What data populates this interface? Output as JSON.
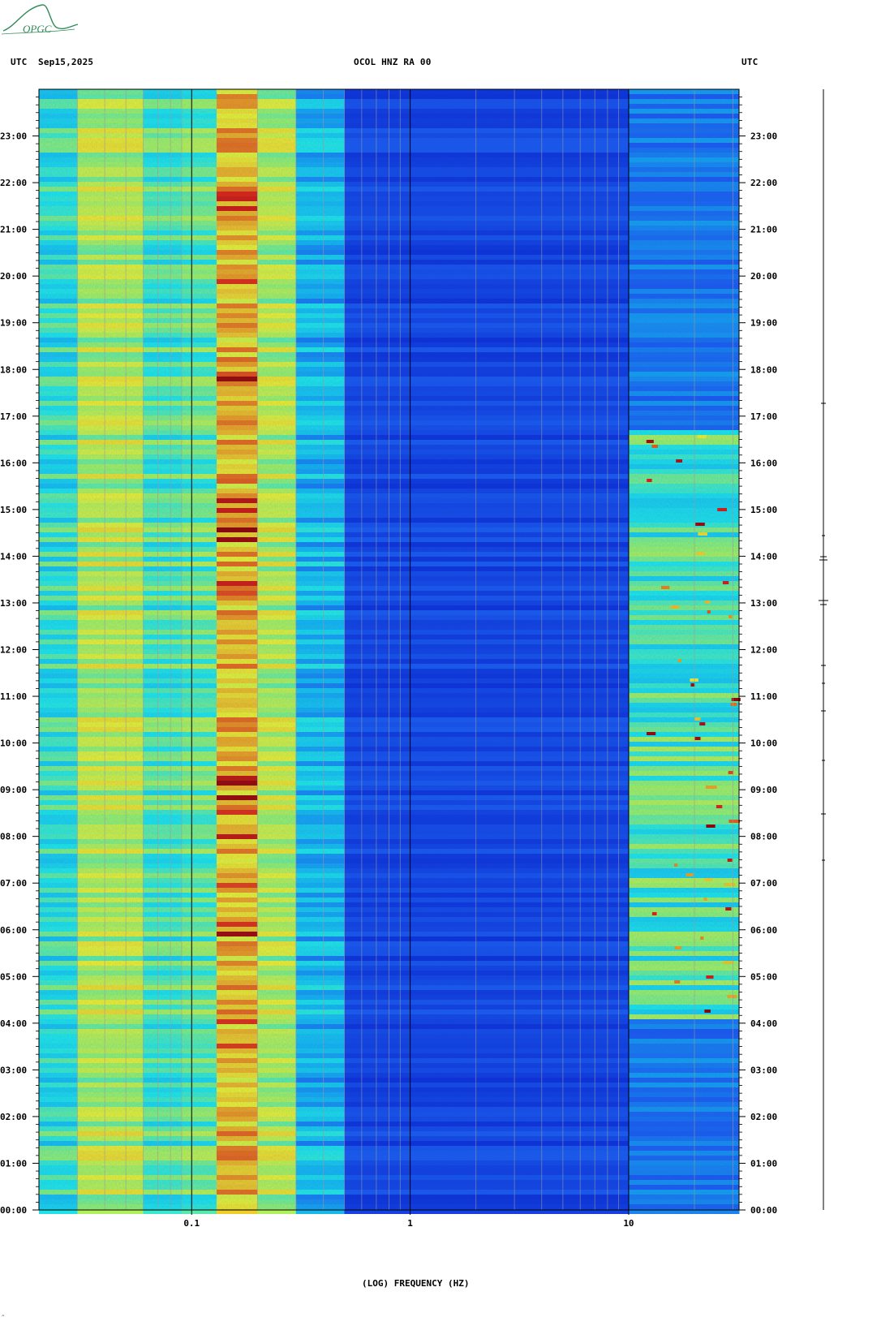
{
  "header": {
    "tz_left": "UTC",
    "date": "Sep15,2025",
    "station": "OCOL HNZ RA 00",
    "tz_right": "UTC"
  },
  "logo": {
    "text": "OPGC",
    "color": "#2e8b57"
  },
  "footnote": "^",
  "chart_data": {
    "type": "heatmap",
    "title": "OCOL HNZ RA 00",
    "xlabel": "(LOG) FREQUENCY (HZ)",
    "ylabel": "UTC",
    "x_scale": "log",
    "xlim": [
      0.02,
      32
    ],
    "x_ticks": [
      {
        "value": 0.1,
        "label": "0.1"
      },
      {
        "value": 1,
        "label": "1"
      },
      {
        "value": 10,
        "label": "10"
      }
    ],
    "y_unit": "hours",
    "ylim": [
      0,
      24
    ],
    "y_ticks": [
      {
        "value": 0,
        "label": "00:00"
      },
      {
        "value": 1,
        "label": "01:00"
      },
      {
        "value": 2,
        "label": "02:00"
      },
      {
        "value": 3,
        "label": "03:00"
      },
      {
        "value": 4,
        "label": "04:00"
      },
      {
        "value": 5,
        "label": "05:00"
      },
      {
        "value": 6,
        "label": "06:00"
      },
      {
        "value": 7,
        "label": "07:00"
      },
      {
        "value": 8,
        "label": "08:00"
      },
      {
        "value": 9,
        "label": "09:00"
      },
      {
        "value": 10,
        "label": "10:00"
      },
      {
        "value": 11,
        "label": "11:00"
      },
      {
        "value": 12,
        "label": "12:00"
      },
      {
        "value": 13,
        "label": "13:00"
      },
      {
        "value": 14,
        "label": "14:00"
      },
      {
        "value": 15,
        "label": "15:00"
      },
      {
        "value": 16,
        "label": "16:00"
      },
      {
        "value": 17,
        "label": "17:00"
      },
      {
        "value": 18,
        "label": "18:00"
      },
      {
        "value": 19,
        "label": "19:00"
      },
      {
        "value": 20,
        "label": "20:00"
      },
      {
        "value": 21,
        "label": "21:00"
      },
      {
        "value": 22,
        "label": "22:00"
      },
      {
        "value": 23,
        "label": "23:00"
      }
    ],
    "colormap": [
      "#0a1ecf",
      "#1e5af0",
      "#17b4f0",
      "#22e6e6",
      "#9af06a",
      "#f0f030",
      "#f0a020",
      "#e02010",
      "#8a0000"
    ],
    "bands": [
      {
        "f_min": 0.02,
        "f_max": 0.03,
        "level": 0.38
      },
      {
        "f_min": 0.03,
        "f_max": 0.06,
        "level": 0.55
      },
      {
        "f_min": 0.06,
        "f_max": 0.09,
        "level": 0.42
      },
      {
        "f_min": 0.09,
        "f_max": 0.13,
        "level": 0.45
      },
      {
        "f_min": 0.13,
        "f_max": 0.2,
        "level": 0.7
      },
      {
        "f_min": 0.2,
        "f_max": 0.3,
        "level": 0.55
      },
      {
        "f_min": 0.3,
        "f_max": 0.5,
        "level": 0.28
      },
      {
        "f_min": 0.5,
        "f_max": 10,
        "level": 0.08
      },
      {
        "f_min": 10,
        "f_max": 32,
        "level": 0.18
      }
    ],
    "high_freq_activity_hours": [
      4.1,
      16.8
    ],
    "grid": true
  }
}
